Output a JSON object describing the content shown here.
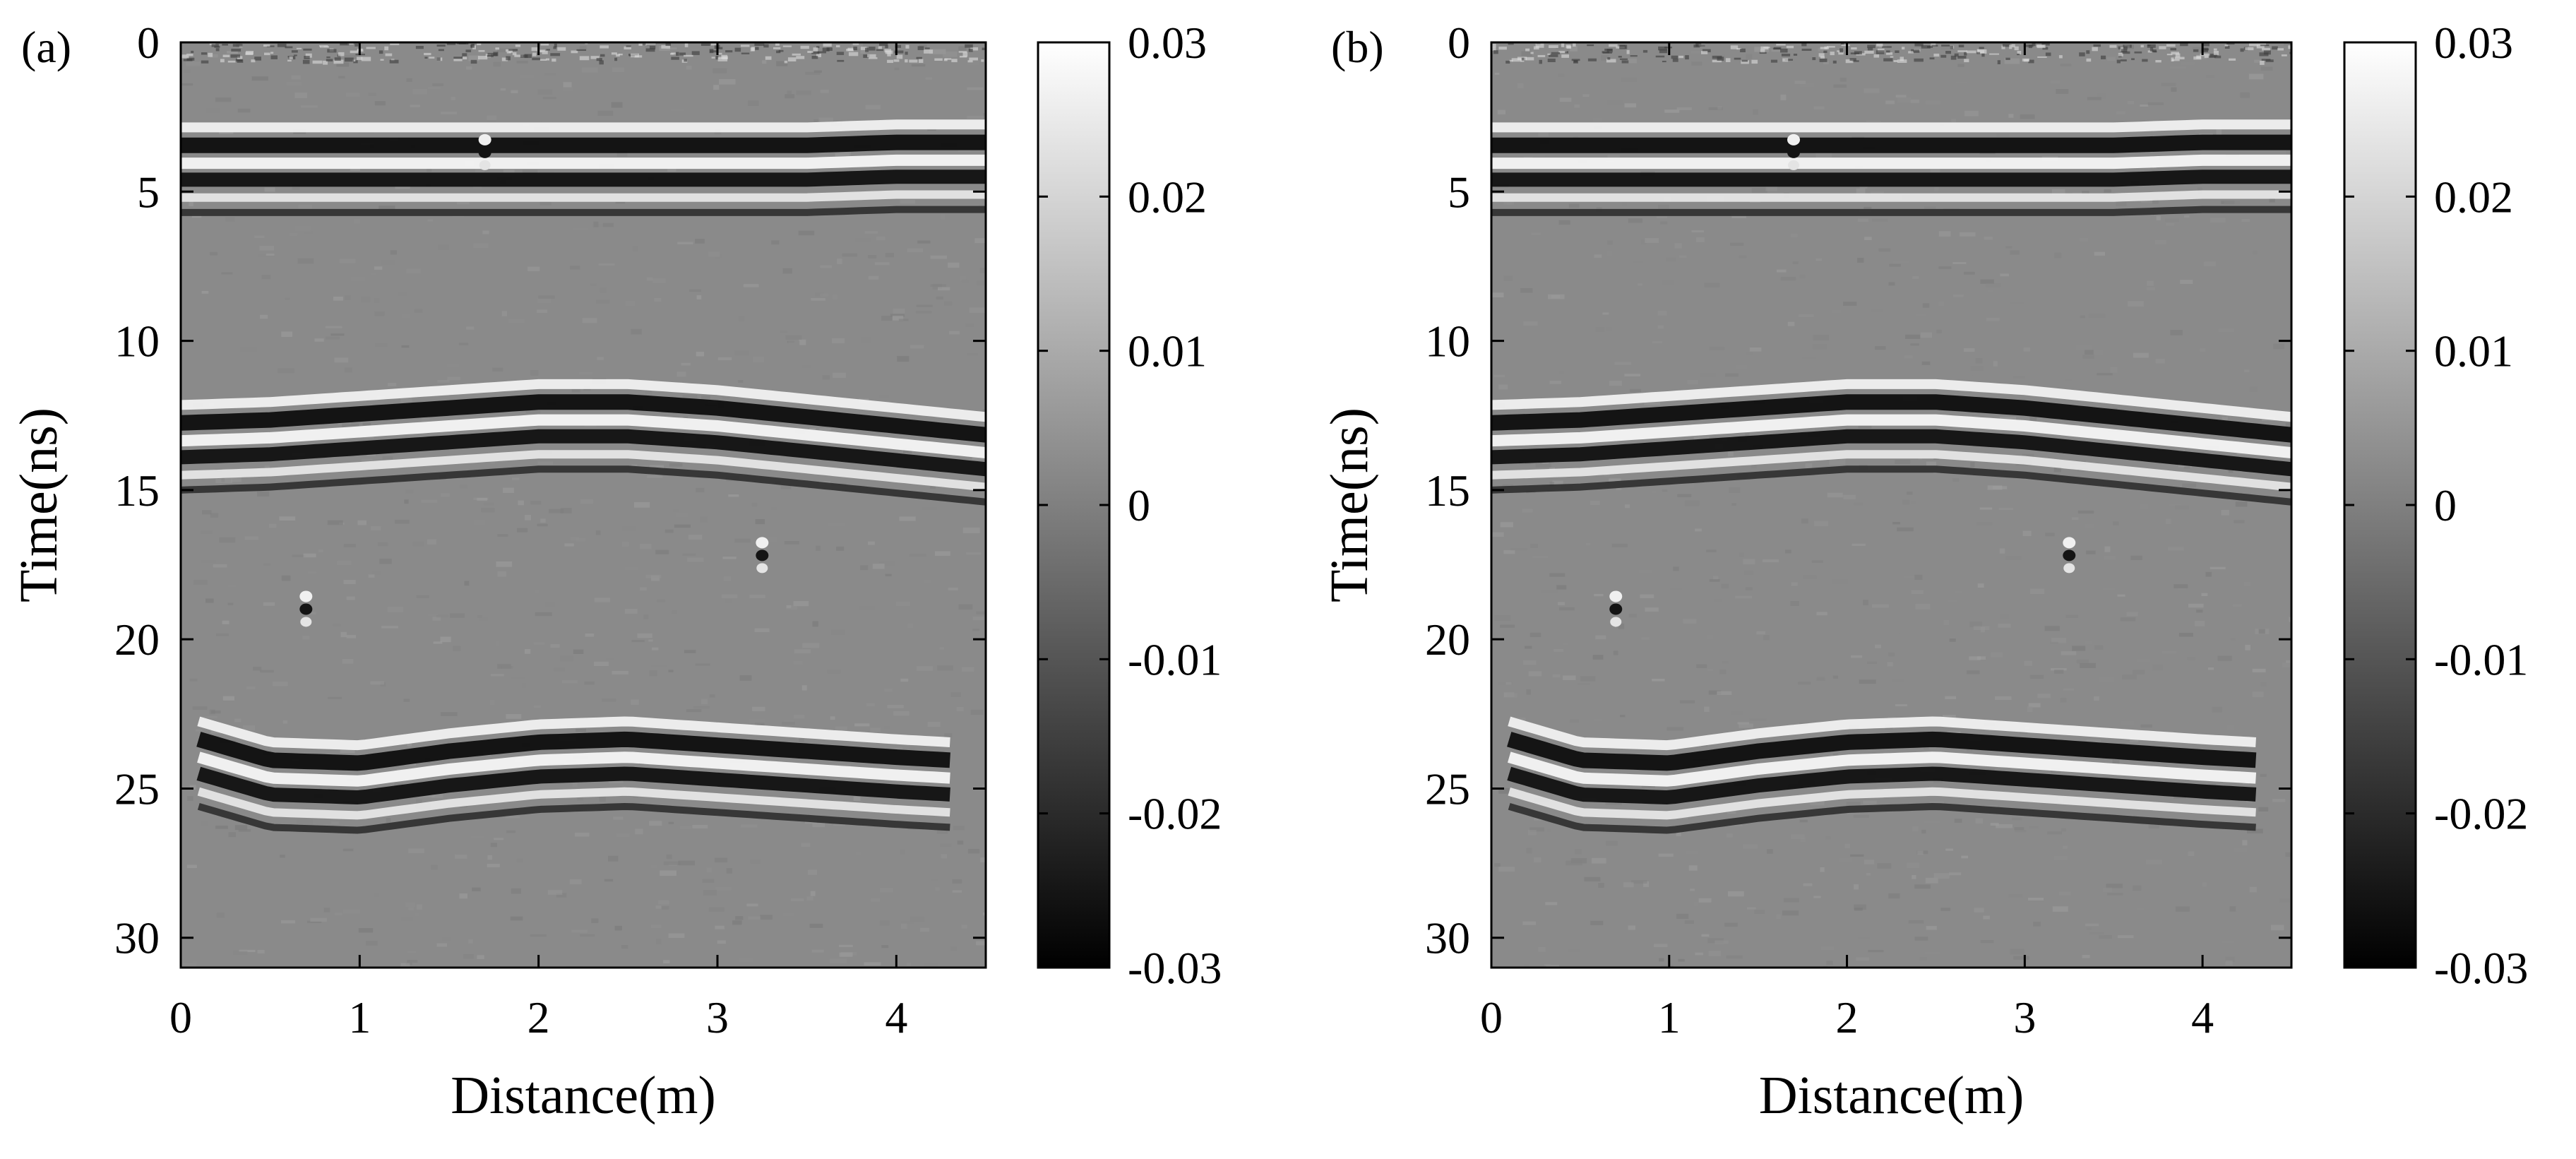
{
  "chart_data": [
    {
      "type": "heatmap",
      "panel_label": "(a)",
      "xlabel": "Distance(m)",
      "ylabel": "Time(ns)",
      "xlim": [
        0,
        4.5
      ],
      "ylim": [
        31,
        0
      ],
      "xticks": [
        "0",
        "1",
        "2",
        "3",
        "4"
      ],
      "yticks": [
        "0",
        "5",
        "10",
        "15",
        "20",
        "25",
        "30"
      ],
      "colormap": "gray",
      "clim": [
        -0.03,
        0.03
      ],
      "colorbar_ticks": [
        "0.03",
        "0.02",
        "0.01",
        "0",
        "-0.01",
        "-0.02",
        "-0.03"
      ],
      "reflectors": [
        {
          "x": [
            0,
            0.5,
            1,
            1.5,
            2,
            2.5,
            3,
            3.5,
            4,
            4.5
          ],
          "time_ns": [
            3.3,
            3.3,
            3.3,
            3.3,
            3.3,
            3.3,
            3.3,
            3.3,
            3.2,
            3.2
          ]
        },
        {
          "x": [
            0,
            0.5,
            1,
            1.5,
            2,
            2.5,
            3,
            3.5,
            4,
            4.5
          ],
          "time_ns": [
            12.6,
            12.5,
            12.3,
            12.1,
            11.9,
            11.9,
            12.1,
            12.4,
            12.7,
            13.0
          ]
        },
        {
          "x": [
            0.1,
            0.5,
            1,
            1.5,
            2,
            2.5,
            3,
            3.5,
            4,
            4.3
          ],
          "time_ns": [
            23.2,
            23.9,
            24.0,
            23.6,
            23.3,
            23.2,
            23.4,
            23.6,
            23.8,
            23.9
          ]
        }
      ],
      "diffractions": [
        {
          "x": 1.7,
          "time_ns": 3.5
        },
        {
          "x": 0.7,
          "time_ns": 18.8
        },
        {
          "x": 3.25,
          "time_ns": 17.0
        }
      ]
    },
    {
      "type": "heatmap",
      "panel_label": "(b)",
      "xlabel": "Distance(m)",
      "ylabel": "Time(ns)",
      "xlim": [
        0,
        4.5
      ],
      "ylim": [
        31,
        0
      ],
      "xticks": [
        "0",
        "1",
        "2",
        "3",
        "4"
      ],
      "yticks": [
        "0",
        "5",
        "10",
        "15",
        "20",
        "25",
        "30"
      ],
      "colormap": "gray",
      "clim": [
        -0.03,
        0.03
      ],
      "colorbar_ticks": [
        "0.03",
        "0.02",
        "0.01",
        "0",
        "-0.01",
        "-0.02",
        "-0.03"
      ],
      "reflectors": [
        {
          "x": [
            0,
            0.5,
            1,
            1.5,
            2,
            2.5,
            3,
            3.5,
            4,
            4.5
          ],
          "time_ns": [
            3.3,
            3.3,
            3.3,
            3.3,
            3.3,
            3.3,
            3.3,
            3.3,
            3.2,
            3.2
          ]
        },
        {
          "x": [
            0,
            0.5,
            1,
            1.5,
            2,
            2.5,
            3,
            3.5,
            4,
            4.5
          ],
          "time_ns": [
            12.6,
            12.5,
            12.3,
            12.1,
            11.9,
            11.9,
            12.1,
            12.4,
            12.7,
            13.0
          ]
        },
        {
          "x": [
            0.1,
            0.5,
            1,
            1.5,
            2,
            2.5,
            3,
            3.5,
            4,
            4.3
          ],
          "time_ns": [
            23.2,
            23.9,
            24.0,
            23.6,
            23.3,
            23.2,
            23.4,
            23.6,
            23.8,
            23.9
          ]
        }
      ],
      "diffractions": [
        {
          "x": 1.7,
          "time_ns": 3.5
        },
        {
          "x": 0.7,
          "time_ns": 18.8
        },
        {
          "x": 3.25,
          "time_ns": 17.0
        }
      ]
    }
  ]
}
